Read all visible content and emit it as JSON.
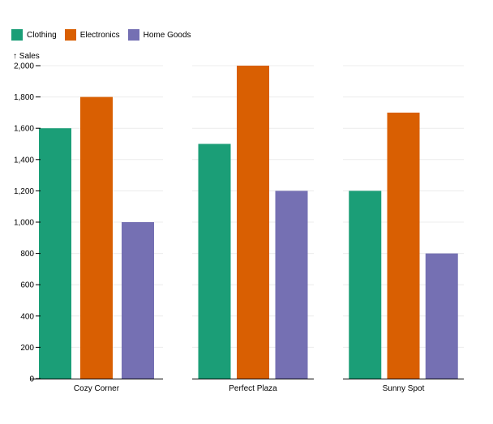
{
  "chart_data": {
    "type": "bar",
    "categories": [
      "Cozy Corner",
      "Perfect Plaza",
      "Sunny Spot"
    ],
    "series": [
      {
        "name": "Clothing",
        "color": "#1b9e77",
        "values": [
          1600,
          1500,
          1200
        ]
      },
      {
        "name": "Electronics",
        "color": "#d95f02",
        "values": [
          1800,
          2000,
          1700
        ]
      },
      {
        "name": "Home Goods",
        "color": "#7570b3",
        "values": [
          1000,
          1200,
          800
        ]
      }
    ],
    "ylabel": "↑ Sales",
    "ylim": [
      0,
      2000
    ],
    "yticks": [
      0,
      200,
      400,
      600,
      800,
      1000,
      1200,
      1400,
      1600,
      1800,
      2000
    ],
    "ytick_labels": [
      "0",
      "200",
      "400",
      "600",
      "800",
      "1,000",
      "1,200",
      "1,400",
      "1,600",
      "1,800",
      "2,000"
    ],
    "grid": true,
    "legend_position": "top-left"
  }
}
